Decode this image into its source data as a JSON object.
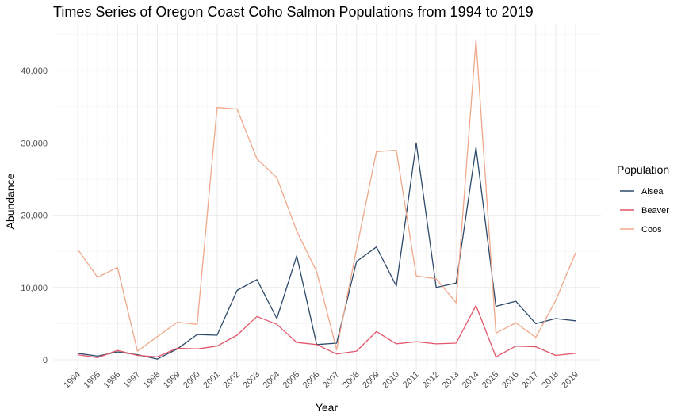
{
  "chart_data": {
    "type": "line",
    "title": "Times Series of Oregon Coast Coho Salmon Populations from 1994 to 2019",
    "xlabel": "Year",
    "ylabel": "Abundance",
    "ylim": [
      0,
      45000
    ],
    "y_ticks": [
      0,
      10000,
      20000,
      30000,
      40000
    ],
    "y_tick_labels": [
      "0",
      "10,000",
      "20,000",
      "30,000",
      "40,000"
    ],
    "x": [
      1994,
      1995,
      1996,
      1997,
      1998,
      1999,
      2000,
      2001,
      2002,
      2003,
      2004,
      2005,
      2006,
      2007,
      2008,
      2009,
      2010,
      2011,
      2012,
      2013,
      2014,
      2015,
      2016,
      2017,
      2018,
      2019
    ],
    "x_tick_labels": [
      "1994",
      "1995",
      "1996",
      "1997",
      "1998",
      "1999",
      "2000",
      "2001",
      "2002",
      "2003",
      "2004",
      "2005",
      "2006",
      "2007",
      "2008",
      "2009",
      "2010",
      "2011",
      "2012",
      "2013",
      "2014",
      "2015",
      "2016",
      "2017",
      "2018",
      "2019"
    ],
    "grid": true,
    "legend_title": "Population",
    "legend_position": "right",
    "series": [
      {
        "name": "Alsea",
        "color": "#2e4a6b",
        "values": [
          900,
          500,
          1100,
          700,
          100,
          1500,
          3500,
          3400,
          9600,
          11100,
          5700,
          14400,
          2100,
          2300,
          13600,
          15600,
          10200,
          30000,
          10000,
          10600,
          29400,
          7400,
          8100,
          5000,
          5700,
          5400
        ]
      },
      {
        "name": "Beaver",
        "color": "#e2566a",
        "values": [
          700,
          300,
          1300,
          600,
          400,
          1600,
          1500,
          1900,
          3400,
          6000,
          4900,
          2400,
          2100,
          800,
          1200,
          3900,
          2200,
          2500,
          2200,
          2300,
          7500,
          400,
          1900,
          1800,
          600,
          900
        ]
      },
      {
        "name": "Coos",
        "color": "#f0a88a",
        "values": [
          15300,
          11400,
          12800,
          1200,
          3200,
          5200,
          4900,
          34900,
          34700,
          27800,
          25200,
          17800,
          12200,
          1400,
          15300,
          28800,
          29000,
          11600,
          11200,
          7900,
          44300,
          3700,
          5100,
          3100,
          8200,
          14800
        ]
      }
    ]
  }
}
